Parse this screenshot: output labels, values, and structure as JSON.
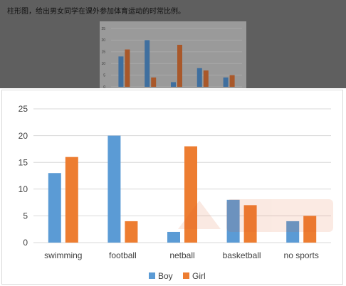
{
  "caption": "柱形图，给出男女同学在课外参加体育运动的时常比例。",
  "chart_data": [
    {
      "type": "bar",
      "categories": [
        "swimming",
        "football",
        "netball",
        "basketball",
        "no sports"
      ],
      "series": [
        {
          "name": "Boy",
          "values": [
            13,
            20,
            2,
            8,
            4
          ],
          "color": "#5b9bd5"
        },
        {
          "name": "Girl",
          "values": [
            16,
            4,
            18,
            7,
            5
          ],
          "color": "#ed7d31"
        }
      ],
      "yticks": [
        0,
        5,
        10,
        15,
        20,
        25
      ],
      "ylim": [
        0,
        25
      ],
      "grid": true,
      "legend": "bottom"
    },
    {
      "type": "bar",
      "categories": [
        "swimming",
        "football",
        "netball",
        "basketball",
        "no sports"
      ],
      "series": [
        {
          "values": [
            13,
            20,
            2,
            8,
            4
          ],
          "color": "#3f6f9f"
        },
        {
          "values": [
            16,
            4,
            18,
            7,
            5
          ],
          "color": "#a9582a"
        }
      ],
      "yticks": [
        0,
        5,
        10,
        15,
        20,
        25
      ],
      "ylim": [
        0,
        25
      ],
      "grid": true,
      "legend": "none"
    }
  ]
}
